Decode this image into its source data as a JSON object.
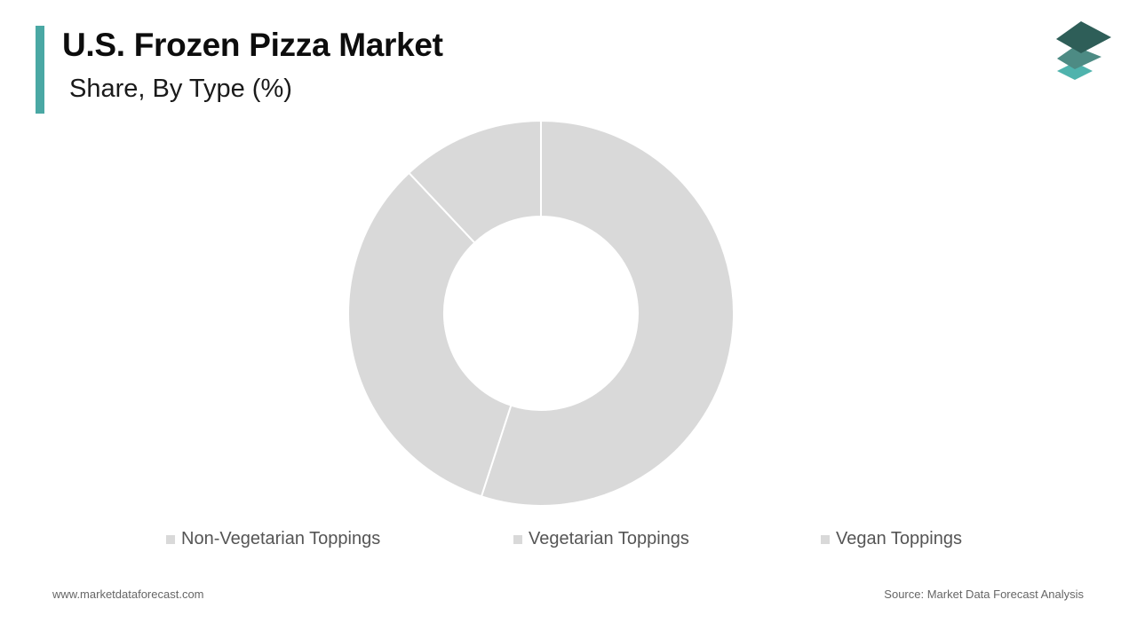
{
  "header": {
    "title": "U.S. Frozen Pizza Market",
    "subtitle": "Share, By Type (%)"
  },
  "colors": {
    "accent": "#4aa8a4",
    "slice_fill": "#d9d9d9",
    "slice_border": "#ffffff",
    "logo_dark": "#2e5e58",
    "logo_mid": "#4d8b84",
    "logo_light": "#4fb3ad"
  },
  "logo": {
    "icon": "stacked-layers-icon"
  },
  "chart_data": {
    "type": "pie",
    "donut": true,
    "categories": [
      "Non-Vegetarian Toppings",
      "Vegetarian Toppings",
      "Vegan Toppings"
    ],
    "values": [
      55,
      33,
      12
    ],
    "legend_position": "bottom",
    "title": "",
    "xlabel": "",
    "ylabel": ""
  },
  "footer": {
    "website": "www.marketdataforecast.com",
    "source": "Source: Market Data Forecast Analysis"
  }
}
